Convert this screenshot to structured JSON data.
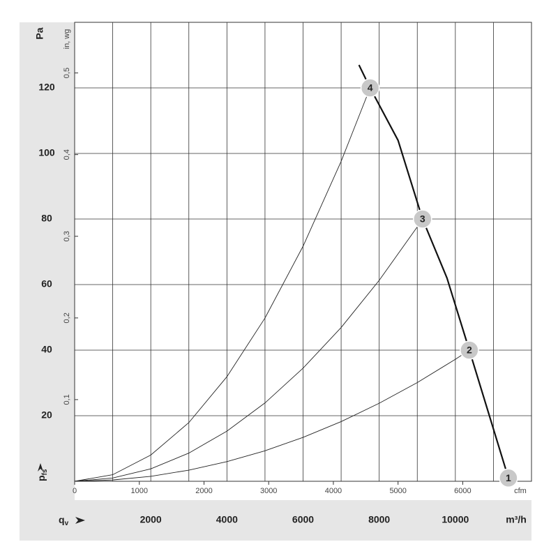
{
  "chart_data": {
    "type": "line",
    "y_label": "Pa",
    "y_symbol": "p",
    "y_symbol_sub": "fs",
    "x_symbol": "q",
    "x_symbol_sub": "v",
    "x_label": "m³/h",
    "x2_label": "cfm",
    "y2_label": "in, wg",
    "xlim": [
      0,
      12000
    ],
    "ylim": [
      0,
      140
    ],
    "xticks": [
      2000,
      4000,
      6000,
      8000,
      10000
    ],
    "xgrid": [
      1000,
      2000,
      3000,
      4000,
      5000,
      6000,
      7000,
      8000,
      9000,
      10000,
      11000
    ],
    "yticks": [
      20,
      40,
      60,
      80,
      100,
      120
    ],
    "x2lim": [
      0,
      7063
    ],
    "x2ticks": [
      0,
      1000,
      2000,
      3000,
      4000,
      5000,
      6000
    ],
    "y2lim": [
      0,
      0.562
    ],
    "y2ticks": [
      {
        "value": 0.1,
        "label": "0,1"
      },
      {
        "value": 0.2,
        "label": "0,2"
      },
      {
        "value": 0.3,
        "label": "0,3"
      },
      {
        "value": 0.4,
        "label": "0,4"
      },
      {
        "value": 0.5,
        "label": "0,5"
      }
    ],
    "grid": true,
    "series": [
      {
        "color": "#111111",
        "width": 2.2,
        "x": [
          7468,
          7761,
          8495,
          9138,
          9780,
          10367,
          11394
        ],
        "values": [
          127,
          120,
          104,
          80,
          62,
          40,
          1
        ]
      },
      {
        "color": "#222222",
        "width": 0.9,
        "x": [
          0,
          1000,
          2000,
          3000,
          4000,
          5000,
          6000,
          7000,
          7761
        ],
        "values": [
          0,
          2,
          8,
          17.9,
          31.9,
          49.8,
          71.7,
          97.6,
          120
        ]
      },
      {
        "color": "#222222",
        "width": 0.9,
        "x": [
          0,
          1000,
          2000,
          3000,
          4000,
          5000,
          6000,
          7000,
          8000,
          9000,
          9138
        ],
        "values": [
          0,
          1,
          3.8,
          8.6,
          15.3,
          23.9,
          34.5,
          46.9,
          61.3,
          77.6,
          80
        ]
      },
      {
        "color": "#222222",
        "width": 0.9,
        "x": [
          0,
          1000,
          2000,
          3000,
          4000,
          5000,
          6000,
          7000,
          8000,
          9000,
          10000,
          10367
        ],
        "values": [
          0,
          0.4,
          1.5,
          3.4,
          6,
          9.3,
          13.4,
          18.2,
          23.8,
          30.1,
          37.2,
          40
        ]
      }
    ],
    "operating_points": [
      {
        "label": "1",
        "x": 11394,
        "y": 1
      },
      {
        "label": "2",
        "x": 10367,
        "y": 40
      },
      {
        "label": "3",
        "x": 9138,
        "y": 80
      },
      {
        "label": "4",
        "x": 7761,
        "y": 120
      }
    ]
  }
}
